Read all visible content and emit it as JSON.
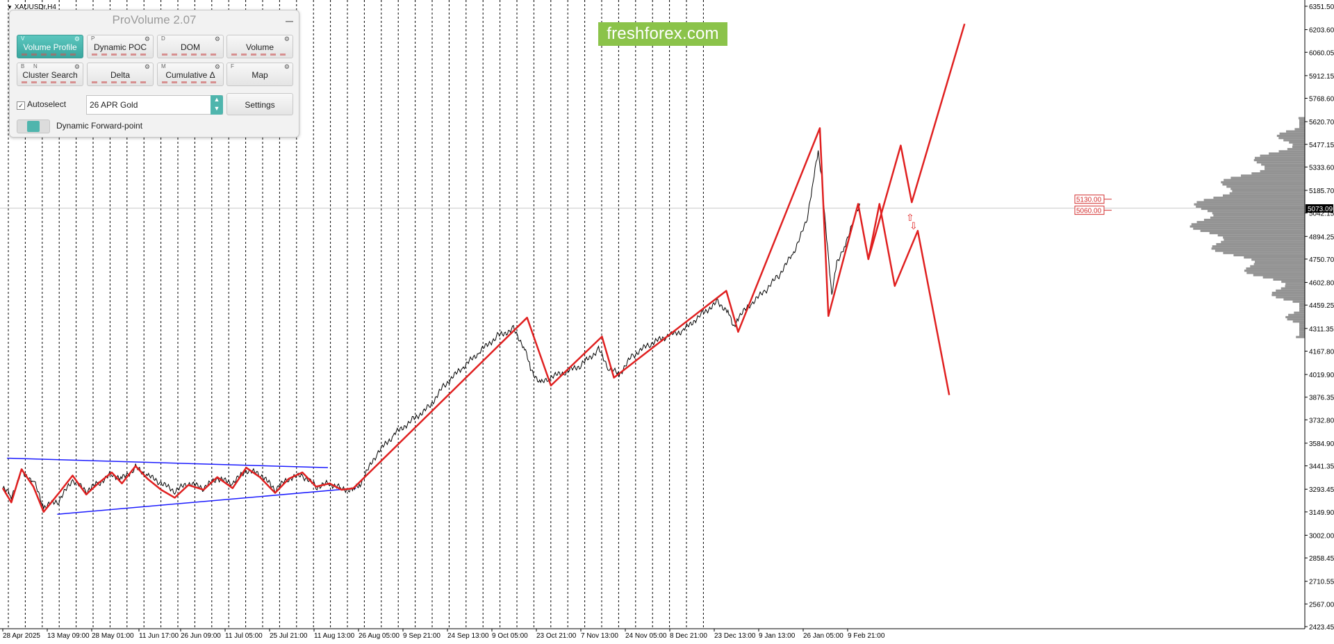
{
  "symbol": {
    "label": "XAUUSDr,H4"
  },
  "watermark": {
    "text": "freshforex.com",
    "color": "#8bc34a"
  },
  "panel": {
    "title": "ProVolume 2.07",
    "buttons": [
      {
        "id": "volume-profile",
        "label": "Volume Profile",
        "key": "V",
        "active": true
      },
      {
        "id": "dynamic-poc",
        "label": "Dynamic POC",
        "key": "P",
        "active": false
      },
      {
        "id": "dom",
        "label": "DOM",
        "key": "D",
        "active": false
      },
      {
        "id": "volume",
        "label": "Volume",
        "key": "",
        "active": false
      },
      {
        "id": "cluster-search",
        "label": "Cluster Search",
        "key": "B",
        "key2": "N",
        "active": false
      },
      {
        "id": "delta",
        "label": "Delta",
        "key": "",
        "active": false
      },
      {
        "id": "cumulative-delta",
        "label": "Cumulative Δ",
        "key": "M",
        "active": false
      },
      {
        "id": "map",
        "label": "Map",
        "key": "F",
        "active": false
      }
    ],
    "autoselect": {
      "label": "Autoselect",
      "checked": true
    },
    "instrument_select": {
      "value": "26 APR Gold"
    },
    "settings_label": "Settings",
    "forward_point": {
      "label": "Dynamic Forward-point",
      "on": true
    },
    "accent_color": "#4fb5ad"
  },
  "price_axis": {
    "labels": [
      "6351.50",
      "6203.60",
      "6060.05",
      "5912.15",
      "5768.60",
      "5620.70",
      "5477.15",
      "5333.60",
      "5185.70",
      "5042.15",
      "4894.25",
      "4750.70",
      "4602.80",
      "4459.25",
      "4311.35",
      "4167.80",
      "4019.90",
      "3876.35",
      "3732.80",
      "3584.90",
      "3441.35",
      "3293.45",
      "3149.90",
      "3002.00",
      "2858.45",
      "2710.55",
      "2567.00",
      "2423.45"
    ],
    "current_price": "5073.09"
  },
  "time_axis": {
    "labels": [
      "28 Apr 2025",
      "13 May 09:00",
      "28 May 01:00",
      "11 Jun 17:00",
      "26 Jun 09:00",
      "11 Jul 05:00",
      "25 Jul 21:00",
      "11 Aug 13:00",
      "26 Aug 05:00",
      "9 Sep 21:00",
      "24 Sep 13:00",
      "9 Oct 05:00",
      "23 Oct 21:00",
      "7 Nov 13:00",
      "24 Nov 05:00",
      "8 Dec 21:00",
      "23 Dec 13:00",
      "9 Jan 13:00",
      "26 Jan 05:00",
      "9 Feb 21:00"
    ]
  },
  "levels": [
    {
      "price": "5130.00",
      "color": "#d32f2f"
    },
    {
      "price": "5060.00",
      "color": "#d32f2f"
    }
  ],
  "chart_data": {
    "type": "line",
    "ylim": [
      2423.45,
      6351.5
    ],
    "price_series": {
      "x": [
        0,
        10,
        22,
        36,
        48,
        66,
        82,
        98,
        112,
        128,
        140,
        156,
        170,
        186,
        202,
        218,
        236,
        252,
        270,
        286,
        302,
        320,
        336,
        352,
        368,
        384,
        398,
        412,
        420,
        440,
        460,
        480,
        500,
        520,
        540,
        560,
        580,
        600,
        612,
        620,
        632,
        642,
        660,
        680,
        700,
        712,
        724,
        740,
        760,
        780,
        800,
        820,
        840,
        852,
        858,
        864,
        880,
        896,
        912,
        928,
        944,
        952,
        958,
        962,
        968,
        974,
        980,
        990,
        1000,
        1008
      ],
      "y": [
        3300,
        3250,
        3400,
        3350,
        3180,
        3220,
        3350,
        3280,
        3330,
        3390,
        3360,
        3430,
        3380,
        3330,
        3280,
        3330,
        3300,
        3360,
        3330,
        3410,
        3390,
        3290,
        3360,
        3380,
        3310,
        3330,
        3300,
        3290,
        3330,
        3520,
        3640,
        3730,
        3810,
        3960,
        4060,
        4160,
        4260,
        4310,
        4200,
        4060,
        3960,
        4000,
        4030,
        4080,
        4180,
        4060,
        4020,
        4140,
        4210,
        4260,
        4300,
        4400,
        4480,
        4420,
        4320,
        4380,
        4470,
        4550,
        4650,
        4780,
        4980,
        5240,
        5420,
        5280,
        4880,
        4520,
        4740,
        4830,
        5020,
        5090
      ]
    },
    "wave_lines": [
      {
        "name": "",
        "color": "#e02020",
        "x": [
          0,
          10,
          22,
          36,
          48,
          66,
          82,
          98,
          112,
          128,
          140,
          156,
          170,
          186,
          202,
          218,
          236,
          252,
          270,
          286,
          302,
          320,
          336,
          352,
          368,
          384,
          398,
          412
        ],
        "y": [
          3300,
          3210,
          3420,
          3310,
          3150,
          3270,
          3380,
          3260,
          3330,
          3400,
          3330,
          3440,
          3360,
          3290,
          3240,
          3320,
          3290,
          3370,
          3300,
          3430,
          3370,
          3270,
          3360,
          3400,
          3310,
          3330,
          3290,
          3300
        ]
      },
      {
        "name": "",
        "color": "#e02020",
        "x": [
          412,
          616,
          644,
          704,
          718,
          850,
          864,
          960,
          970,
          1005,
          1017,
          1055,
          1068,
          1130
        ],
        "y": [
          3300,
          4380,
          3950,
          4260,
          4000,
          4550,
          4290,
          5580,
          4390,
          5100,
          4750,
          5470,
          5110,
          6240
        ]
      },
      {
        "name": "",
        "color": "#e02020",
        "x": [
          1017,
          1030,
          1048,
          1075,
          1112
        ],
        "y": [
          4750,
          5100,
          4580,
          4930,
          3890
        ]
      }
    ],
    "trend_lines": [
      {
        "name": "",
        "color": "#1a1aff",
        "x": [
          5,
          382
        ],
        "y": [
          3490,
          3430
        ]
      },
      {
        "name": "",
        "color": "#1a1aff",
        "x": [
          64,
          415
        ],
        "y": [
          3135,
          3300
        ]
      }
    ],
    "volume_profile_color": "#808080"
  }
}
